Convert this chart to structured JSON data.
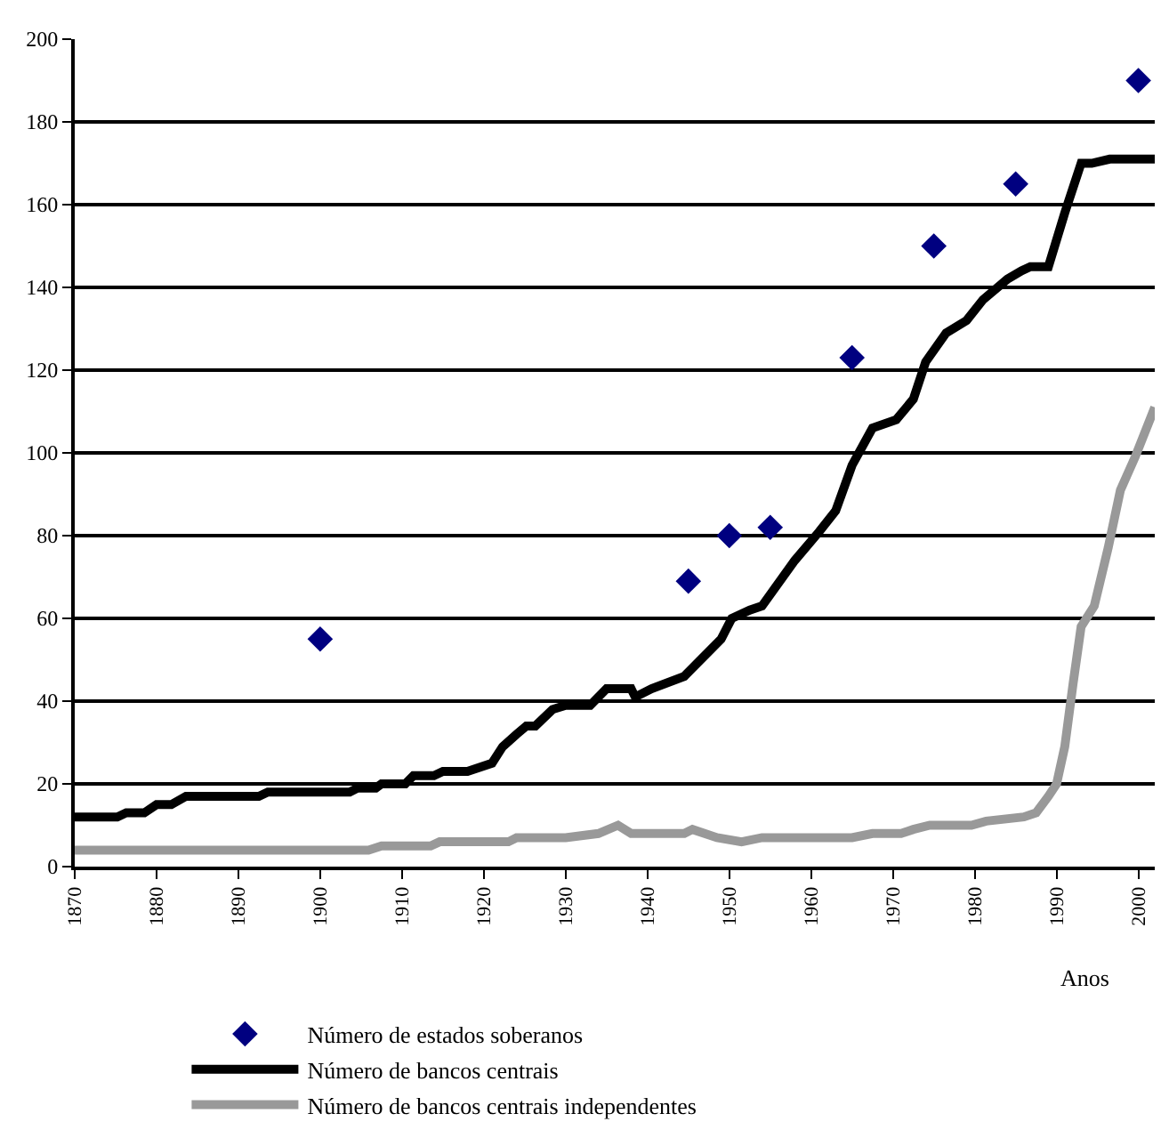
{
  "chart_data": {
    "type": "line",
    "xlabel": "Anos",
    "xlim": [
      1870,
      2002
    ],
    "xticks": [
      1870,
      1880,
      1890,
      1900,
      1910,
      1920,
      1930,
      1940,
      1950,
      1960,
      1970,
      1980,
      1990,
      2000
    ],
    "ylim": [
      0,
      200
    ],
    "yticks": [
      0,
      20,
      40,
      60,
      80,
      100,
      120,
      140,
      160,
      180,
      200
    ],
    "grid": "y",
    "legend": "bottom",
    "series": [
      {
        "name": "Número de estados soberanos",
        "type": "scatter",
        "marker": "diamond",
        "color": "#000080",
        "x": [
          1900,
          1945,
          1950,
          1955,
          1965,
          1975,
          1985,
          2000
        ],
        "values": [
          55,
          69,
          80,
          82,
          123,
          150,
          165,
          190
        ]
      },
      {
        "name": "Número de bancos centrais",
        "type": "line",
        "marker": "none",
        "color": "#000000",
        "x": [
          1870,
          1875.2,
          1876.3,
          1878.5,
          1880,
          1881.8,
          1883.6,
          1892.5,
          1893.6,
          1903.6,
          1904.6,
          1906.8,
          1907.5,
          1910.4,
          1911.4,
          1913.9,
          1915,
          1918,
          1921,
          1922.3,
          1924,
          1925.2,
          1926.3,
          1928.4,
          1930,
          1933,
          1935,
          1938,
          1938.5,
          1940.5,
          1944.5,
          1949,
          1950.3,
          1952.5,
          1954,
          1958,
          1961,
          1963,
          1965,
          1967.5,
          1970.4,
          1972.5,
          1974,
          1976.5,
          1979,
          1981,
          1984,
          1985.7,
          1986.8,
          1989,
          1991,
          1993,
          1994.3,
          1996.5,
          2002
        ],
        "values": [
          12,
          12,
          13,
          13,
          15,
          15,
          17,
          17,
          18,
          18,
          19,
          19,
          20,
          20,
          22,
          22,
          23,
          23,
          25,
          29,
          32,
          34,
          34,
          38,
          39,
          39,
          43,
          43,
          41,
          43,
          46,
          55,
          60,
          62,
          63,
          74,
          81,
          86,
          97,
          106,
          108,
          113,
          122,
          129,
          132,
          137,
          142,
          144,
          145,
          145,
          158,
          170,
          170,
          171,
          171
        ]
      },
      {
        "name": "Número de bancos centrais independentes",
        "type": "line",
        "marker": "none",
        "color": "#999999",
        "x": [
          1870,
          1905.9,
          1907.5,
          1913.5,
          1914.6,
          1923,
          1924,
          1930,
          1934,
          1936.4,
          1938,
          1944.5,
          1945.5,
          1948.5,
          1951.5,
          1954,
          1965,
          1967.5,
          1971,
          1972.5,
          1974.5,
          1979.6,
          1981.4,
          1986,
          1987.5,
          1989,
          1990,
          1991,
          1992,
          1993,
          1994.6,
          1996.3,
          1997.8,
          1999.6,
          2002
        ],
        "values": [
          4,
          4,
          5,
          5,
          6,
          6,
          7,
          7,
          8,
          10,
          8,
          8,
          9,
          7,
          6,
          7,
          7,
          8,
          8,
          9,
          10,
          10,
          11,
          12,
          13,
          17,
          20,
          29,
          44,
          58,
          63,
          77,
          91,
          99,
          111
        ]
      }
    ]
  }
}
